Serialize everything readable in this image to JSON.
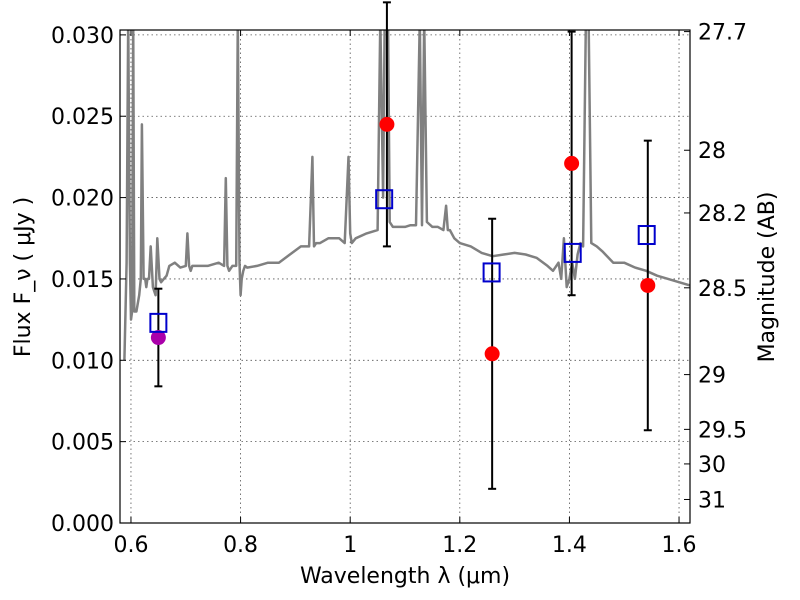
{
  "chart_data": {
    "type": "scatter",
    "title": "",
    "xlabel": "Wavelength  λ (μm)",
    "ylabel": "Flux  F_ν  ( μJy )",
    "y2label": "Magnitude (AB)",
    "xlim": [
      0.58,
      1.62
    ],
    "ylim": [
      0.0,
      0.0303
    ],
    "grid": true,
    "legend": "none",
    "x_ticks": [
      {
        "value": 0.6,
        "label": "0.6"
      },
      {
        "value": 0.8,
        "label": "0.8"
      },
      {
        "value": 1.0,
        "label": "1"
      },
      {
        "value": 1.2,
        "label": "1.2"
      },
      {
        "value": 1.4,
        "label": "1.4"
      },
      {
        "value": 1.6,
        "label": "1.6"
      }
    ],
    "y_ticks": [
      {
        "value": 0.0,
        "label": "0.000"
      },
      {
        "value": 0.005,
        "label": "0.005"
      },
      {
        "value": 0.01,
        "label": "0.010"
      },
      {
        "value": 0.015,
        "label": "0.015"
      },
      {
        "value": 0.02,
        "label": "0.020"
      },
      {
        "value": 0.025,
        "label": "0.025"
      },
      {
        "value": 0.03,
        "label": "0.030"
      }
    ],
    "y2_ticks": [
      {
        "value": 27.7,
        "label": "27.7"
      },
      {
        "value": 28.0,
        "label": "28"
      },
      {
        "value": 28.2,
        "label": "28.2"
      },
      {
        "value": 28.5,
        "label": "28.5"
      },
      {
        "value": 29.0,
        "label": "29"
      },
      {
        "value": 29.5,
        "label": "29.5"
      },
      {
        "value": 30.0,
        "label": "30"
      },
      {
        "value": 31.0,
        "label": "31"
      }
    ],
    "series": [
      {
        "role": "model",
        "marker": "line",
        "color": "#808080",
        "x": [
          0.588,
          0.592,
          0.595,
          0.598,
          0.6,
          0.602,
          0.604,
          0.606,
          0.61,
          0.615,
          0.618,
          0.62,
          0.623,
          0.626,
          0.628,
          0.63,
          0.633,
          0.636,
          0.64,
          0.645,
          0.648,
          0.652,
          0.655,
          0.66,
          0.665,
          0.67,
          0.68,
          0.69,
          0.7,
          0.703,
          0.706,
          0.709,
          0.712,
          0.72,
          0.74,
          0.76,
          0.77,
          0.773,
          0.776,
          0.779,
          0.785,
          0.792,
          0.795,
          0.798,
          0.8,
          0.802,
          0.805,
          0.808,
          0.812,
          0.83,
          0.85,
          0.87,
          0.89,
          0.91,
          0.925,
          0.931,
          0.934,
          0.938,
          0.945,
          0.96,
          0.98,
          0.99,
          0.997,
          1.0,
          1.003,
          1.01,
          1.03,
          1.05,
          1.055,
          1.06,
          1.063,
          1.066,
          1.069,
          1.072,
          1.078,
          1.085,
          1.1,
          1.11,
          1.12,
          1.127,
          1.131,
          1.135,
          1.14,
          1.15,
          1.16,
          1.17,
          1.175,
          1.178,
          1.182,
          1.19,
          1.2,
          1.22,
          1.24,
          1.26,
          1.28,
          1.3,
          1.32,
          1.34,
          1.36,
          1.37,
          1.38,
          1.385,
          1.39,
          1.395,
          1.4,
          1.405,
          1.41,
          1.415,
          1.42,
          1.425,
          1.43,
          1.435,
          1.44,
          1.45,
          1.46,
          1.48,
          1.5,
          1.52,
          1.54,
          1.56,
          1.58,
          1.6,
          1.62
        ],
        "y": [
          0.01,
          0.016,
          0.031,
          0.016,
          0.0125,
          0.013,
          0.031,
          0.013,
          0.013,
          0.014,
          0.015,
          0.0245,
          0.015,
          0.015,
          0.0145,
          0.015,
          0.015,
          0.017,
          0.0145,
          0.014,
          0.0175,
          0.015,
          0.0148,
          0.015,
          0.0152,
          0.0158,
          0.016,
          0.0157,
          0.0158,
          0.0178,
          0.0158,
          0.0155,
          0.0158,
          0.0158,
          0.0158,
          0.016,
          0.0158,
          0.0212,
          0.0158,
          0.0155,
          0.0158,
          0.0158,
          0.031,
          0.016,
          0.014,
          0.015,
          0.0155,
          0.0158,
          0.0157,
          0.0158,
          0.016,
          0.016,
          0.0165,
          0.017,
          0.017,
          0.0225,
          0.017,
          0.0172,
          0.0172,
          0.0175,
          0.0175,
          0.0172,
          0.0225,
          0.0178,
          0.0172,
          0.0175,
          0.0178,
          0.018,
          0.031,
          0.02,
          0.031,
          0.031,
          0.031,
          0.0185,
          0.0182,
          0.0182,
          0.0182,
          0.0183,
          0.0183,
          0.031,
          0.0183,
          0.031,
          0.0185,
          0.0182,
          0.0182,
          0.018,
          0.0195,
          0.018,
          0.018,
          0.0175,
          0.0172,
          0.017,
          0.0166,
          0.0164,
          0.0165,
          0.0166,
          0.0165,
          0.0163,
          0.0158,
          0.0155,
          0.016,
          0.015,
          0.0175,
          0.0145,
          0.015,
          0.016,
          0.015,
          0.0165,
          0.0172,
          0.017,
          0.031,
          0.031,
          0.0172,
          0.017,
          0.0167,
          0.016,
          0.016,
          0.0157,
          0.0155,
          0.0152,
          0.015,
          0.0148,
          0.0146
        ]
      },
      {
        "role": "measured",
        "marker": "filled-circle",
        "color": "#ff0000",
        "x": [
          1.067,
          1.259,
          1.404,
          1.543
        ],
        "y": [
          0.0245,
          0.0104,
          0.0221,
          0.0146
        ],
        "error": [
          0.0075,
          0.0083,
          0.0081,
          0.0089
        ]
      },
      {
        "role": "measured-optical",
        "marker": "filled-circle",
        "color": "#aa00aa",
        "x": [
          0.65
        ],
        "y": [
          0.0114
        ],
        "error": [
          0.003
        ]
      },
      {
        "role": "model-bandpass",
        "marker": "open-square",
        "color": "#0000cc",
        "x": [
          0.65,
          1.062,
          1.258,
          1.406,
          1.541
        ],
        "y": [
          0.0123,
          0.0199,
          0.0154,
          0.0166,
          0.0177
        ]
      }
    ]
  }
}
